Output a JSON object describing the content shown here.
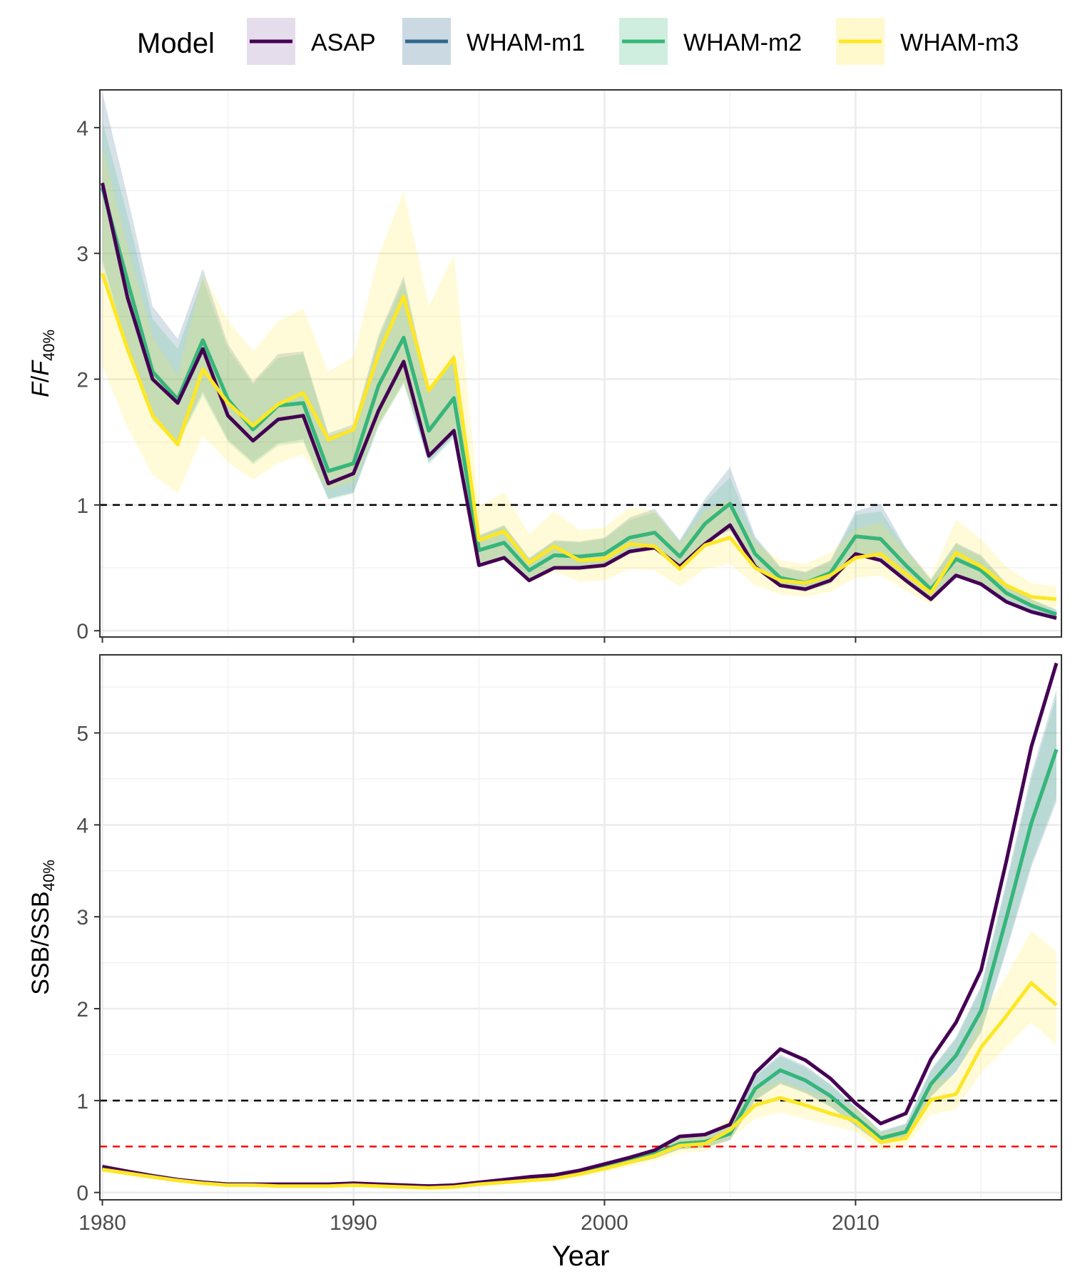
{
  "legend": {
    "title": "Model",
    "items": [
      {
        "label": "ASAP",
        "color": "#440154"
      },
      {
        "label": "WHAM-m1",
        "color": "#31688E"
      },
      {
        "label": "WHAM-m2",
        "color": "#35B779"
      },
      {
        "label": "WHAM-m3",
        "color": "#FDE725"
      }
    ]
  },
  "chart_data": [
    {
      "type": "line",
      "panel": "top",
      "ylabel": {
        "main": "F",
        "slash": "/",
        "sym": "F",
        "sub": "40%"
      },
      "xlim": [
        1979.9,
        2018.2
      ],
      "ylim": [
        -0.05,
        4.3
      ],
      "yticks": [
        0,
        1,
        2,
        3,
        4
      ],
      "xticks": [
        1980,
        1990,
        2000,
        2010
      ],
      "reference_lines": [
        {
          "y": 1,
          "color": "#000000"
        }
      ],
      "x": [
        1980,
        1981,
        1982,
        1983,
        1984,
        1985,
        1986,
        1987,
        1988,
        1989,
        1990,
        1991,
        1992,
        1993,
        1994,
        1995,
        1996,
        1997,
        1998,
        1999,
        2000,
        2001,
        2002,
        2003,
        2004,
        2005,
        2006,
        2007,
        2008,
        2009,
        2010,
        2011,
        2012,
        2013,
        2014,
        2015,
        2016,
        2017,
        2018
      ],
      "series": [
        {
          "name": "ASAP",
          "color": "#440154",
          "values": [
            3.56,
            2.65,
            2.0,
            1.81,
            2.24,
            1.71,
            1.51,
            1.68,
            1.71,
            1.17,
            1.25,
            1.75,
            2.14,
            1.39,
            1.59,
            0.52,
            0.58,
            0.4,
            0.5,
            0.5,
            0.52,
            0.63,
            0.66,
            0.51,
            0.69,
            0.84,
            0.51,
            0.36,
            0.33,
            0.4,
            0.61,
            0.56,
            0.4,
            0.25,
            0.44,
            0.37,
            0.23,
            0.15,
            0.1
          ]
        },
        {
          "name": "WHAM-m1",
          "color": "#31688E",
          "values": [
            3.52,
            2.78,
            2.06,
            1.84,
            2.31,
            1.84,
            1.6,
            1.79,
            1.81,
            1.27,
            1.33,
            1.95,
            2.33,
            1.59,
            1.85,
            0.64,
            0.7,
            0.48,
            0.6,
            0.59,
            0.61,
            0.74,
            0.78,
            0.59,
            0.85,
            1.01,
            0.61,
            0.42,
            0.38,
            0.46,
            0.75,
            0.73,
            0.52,
            0.33,
            0.57,
            0.48,
            0.3,
            0.2,
            0.13
          ],
          "lower": [
            2.95,
            2.25,
            1.7,
            1.5,
            1.9,
            1.52,
            1.34,
            1.49,
            1.52,
            1.05,
            1.1,
            1.64,
            1.98,
            1.34,
            1.55,
            0.54,
            0.59,
            0.4,
            0.5,
            0.49,
            0.51,
            0.62,
            0.65,
            0.49,
            0.7,
            0.8,
            0.5,
            0.35,
            0.32,
            0.38,
            0.6,
            0.58,
            0.42,
            0.26,
            0.46,
            0.38,
            0.24,
            0.16,
            0.1
          ],
          "upper": [
            4.28,
            3.45,
            2.58,
            2.32,
            2.88,
            2.28,
            1.98,
            2.2,
            2.22,
            1.57,
            1.64,
            2.35,
            2.82,
            1.92,
            2.2,
            0.76,
            0.84,
            0.58,
            0.72,
            0.71,
            0.74,
            0.9,
            0.97,
            0.72,
            1.05,
            1.3,
            0.75,
            0.51,
            0.47,
            0.56,
            0.95,
            1.01,
            0.66,
            0.41,
            0.7,
            0.6,
            0.38,
            0.25,
            0.17
          ]
        },
        {
          "name": "WHAM-m2",
          "color": "#35B779",
          "values": [
            3.52,
            2.78,
            2.06,
            1.84,
            2.31,
            1.84,
            1.6,
            1.79,
            1.81,
            1.27,
            1.33,
            1.95,
            2.33,
            1.59,
            1.85,
            0.64,
            0.7,
            0.48,
            0.6,
            0.59,
            0.61,
            0.74,
            0.78,
            0.59,
            0.85,
            1.01,
            0.61,
            0.42,
            0.38,
            0.46,
            0.75,
            0.73,
            0.52,
            0.33,
            0.57,
            0.48,
            0.3,
            0.2,
            0.13
          ],
          "lower": [
            2.9,
            2.22,
            1.67,
            1.48,
            1.87,
            1.5,
            1.32,
            1.47,
            1.5,
            1.04,
            1.09,
            1.62,
            1.96,
            1.32,
            1.53,
            0.53,
            0.58,
            0.4,
            0.49,
            0.48,
            0.5,
            0.61,
            0.64,
            0.48,
            0.69,
            0.8,
            0.49,
            0.34,
            0.31,
            0.37,
            0.59,
            0.58,
            0.41,
            0.26,
            0.45,
            0.38,
            0.24,
            0.16,
            0.1
          ],
          "upper": [
            4.05,
            3.3,
            2.48,
            2.24,
            2.8,
            2.24,
            1.96,
            2.17,
            2.2,
            1.55,
            1.61,
            2.32,
            2.78,
            1.9,
            2.19,
            0.75,
            0.83,
            0.57,
            0.71,
            0.7,
            0.73,
            0.88,
            0.94,
            0.71,
            1.02,
            1.22,
            0.73,
            0.5,
            0.46,
            0.55,
            0.92,
            0.95,
            0.65,
            0.4,
            0.69,
            0.59,
            0.37,
            0.25,
            0.16
          ]
        },
        {
          "name": "WHAM-m3",
          "color": "#FDE725",
          "values": [
            2.84,
            2.24,
            1.71,
            1.48,
            2.08,
            1.81,
            1.63,
            1.8,
            1.89,
            1.52,
            1.6,
            2.2,
            2.66,
            1.91,
            2.17,
            0.72,
            0.79,
            0.54,
            0.67,
            0.56,
            0.57,
            0.69,
            0.67,
            0.49,
            0.68,
            0.74,
            0.5,
            0.4,
            0.38,
            0.44,
            0.58,
            0.61,
            0.45,
            0.3,
            0.62,
            0.51,
            0.36,
            0.27,
            0.25
          ],
          "lower": [
            2.1,
            1.62,
            1.24,
            1.09,
            1.55,
            1.34,
            1.2,
            1.33,
            1.4,
            1.12,
            1.18,
            1.63,
            1.97,
            1.41,
            1.6,
            0.52,
            0.56,
            0.38,
            0.47,
            0.39,
            0.4,
            0.49,
            0.48,
            0.35,
            0.49,
            0.53,
            0.36,
            0.29,
            0.27,
            0.31,
            0.42,
            0.44,
            0.32,
            0.21,
            0.45,
            0.37,
            0.26,
            0.19,
            0.18
          ],
          "upper": [
            3.85,
            3.06,
            2.34,
            2.03,
            2.84,
            2.47,
            2.22,
            2.46,
            2.56,
            2.06,
            2.18,
            2.98,
            3.5,
            2.58,
            2.99,
            0.99,
            1.1,
            0.77,
            0.95,
            0.8,
            0.82,
            0.98,
            0.95,
            0.69,
            0.95,
            1.04,
            0.7,
            0.56,
            0.53,
            0.62,
            0.81,
            0.86,
            0.64,
            0.43,
            0.88,
            0.73,
            0.51,
            0.38,
            0.35
          ]
        }
      ]
    },
    {
      "type": "line",
      "panel": "bottom",
      "xlabel": "Year",
      "ylabel": {
        "main": "SSB",
        "slash": "/",
        "sym": "SSB",
        "sub": "40%"
      },
      "xlim": [
        1979.9,
        2018.2
      ],
      "ylim": [
        -0.08,
        5.85
      ],
      "yticks": [
        0,
        1,
        2,
        3,
        4,
        5
      ],
      "xticks": [
        1980,
        1990,
        2000,
        2010
      ],
      "reference_lines": [
        {
          "y": 1,
          "color": "#000000"
        },
        {
          "y": 0.5,
          "color": "#FF0000"
        }
      ],
      "x": [
        1980,
        1981,
        1982,
        1983,
        1984,
        1985,
        1986,
        1987,
        1988,
        1989,
        1990,
        1991,
        1992,
        1993,
        1994,
        1995,
        1996,
        1997,
        1998,
        1999,
        2000,
        2001,
        2002,
        2003,
        2004,
        2005,
        2006,
        2007,
        2008,
        2009,
        2010,
        2011,
        2012,
        2013,
        2014,
        2015,
        2016,
        2017,
        2018
      ],
      "series": [
        {
          "name": "ASAP",
          "color": "#440154",
          "values": [
            0.28,
            0.23,
            0.18,
            0.14,
            0.11,
            0.09,
            0.09,
            0.09,
            0.09,
            0.09,
            0.1,
            0.09,
            0.08,
            0.07,
            0.08,
            0.11,
            0.14,
            0.17,
            0.19,
            0.24,
            0.31,
            0.38,
            0.46,
            0.61,
            0.63,
            0.74,
            1.3,
            1.56,
            1.44,
            1.24,
            0.97,
            0.75,
            0.86,
            1.45,
            1.85,
            2.42,
            3.6,
            4.85,
            5.76
          ]
        },
        {
          "name": "WHAM-m1",
          "color": "#31688E",
          "values": [
            0.27,
            0.22,
            0.18,
            0.14,
            0.11,
            0.09,
            0.09,
            0.08,
            0.08,
            0.08,
            0.09,
            0.08,
            0.07,
            0.07,
            0.07,
            0.1,
            0.12,
            0.15,
            0.17,
            0.22,
            0.29,
            0.35,
            0.42,
            0.53,
            0.55,
            0.64,
            1.13,
            1.33,
            1.22,
            1.05,
            0.82,
            0.59,
            0.66,
            1.18,
            1.49,
            1.98,
            2.98,
            4.02,
            4.82
          ],
          "lower": [
            0.24,
            0.19,
            0.15,
            0.12,
            0.09,
            0.08,
            0.07,
            0.07,
            0.07,
            0.07,
            0.08,
            0.07,
            0.06,
            0.06,
            0.06,
            0.08,
            0.1,
            0.13,
            0.15,
            0.19,
            0.25,
            0.31,
            0.37,
            0.47,
            0.49,
            0.57,
            1.0,
            1.18,
            1.08,
            0.93,
            0.72,
            0.52,
            0.58,
            1.04,
            1.31,
            1.74,
            2.62,
            3.54,
            4.25
          ],
          "upper": [
            0.31,
            0.25,
            0.21,
            0.16,
            0.13,
            0.1,
            0.1,
            0.09,
            0.09,
            0.09,
            0.1,
            0.09,
            0.08,
            0.08,
            0.08,
            0.12,
            0.14,
            0.17,
            0.19,
            0.25,
            0.33,
            0.4,
            0.48,
            0.6,
            0.62,
            0.73,
            1.28,
            1.5,
            1.38,
            1.18,
            0.93,
            0.67,
            0.75,
            1.34,
            1.69,
            2.25,
            3.38,
            4.56,
            5.47
          ]
        },
        {
          "name": "WHAM-m2",
          "color": "#35B779",
          "values": [
            0.27,
            0.22,
            0.18,
            0.14,
            0.11,
            0.09,
            0.09,
            0.08,
            0.08,
            0.08,
            0.09,
            0.08,
            0.07,
            0.07,
            0.07,
            0.1,
            0.12,
            0.15,
            0.17,
            0.22,
            0.29,
            0.35,
            0.42,
            0.53,
            0.55,
            0.64,
            1.13,
            1.33,
            1.22,
            1.05,
            0.82,
            0.59,
            0.66,
            1.18,
            1.49,
            1.98,
            2.98,
            4.02,
            4.82
          ],
          "lower": [
            0.24,
            0.19,
            0.15,
            0.12,
            0.09,
            0.08,
            0.07,
            0.07,
            0.07,
            0.07,
            0.08,
            0.07,
            0.06,
            0.06,
            0.06,
            0.08,
            0.1,
            0.13,
            0.15,
            0.19,
            0.25,
            0.31,
            0.37,
            0.47,
            0.49,
            0.57,
            1.01,
            1.19,
            1.09,
            0.94,
            0.73,
            0.53,
            0.59,
            1.05,
            1.32,
            1.76,
            2.65,
            3.58,
            4.3
          ],
          "upper": [
            0.3,
            0.25,
            0.2,
            0.16,
            0.12,
            0.1,
            0.1,
            0.09,
            0.09,
            0.09,
            0.1,
            0.09,
            0.08,
            0.08,
            0.08,
            0.11,
            0.14,
            0.17,
            0.19,
            0.25,
            0.32,
            0.39,
            0.47,
            0.59,
            0.61,
            0.72,
            1.26,
            1.48,
            1.36,
            1.17,
            0.92,
            0.66,
            0.74,
            1.32,
            1.67,
            2.22,
            3.34,
            4.5,
            5.4
          ]
        },
        {
          "name": "WHAM-m3",
          "color": "#FDE725",
          "values": [
            0.25,
            0.21,
            0.17,
            0.13,
            0.1,
            0.08,
            0.08,
            0.07,
            0.07,
            0.07,
            0.08,
            0.07,
            0.06,
            0.05,
            0.06,
            0.09,
            0.11,
            0.13,
            0.15,
            0.2,
            0.26,
            0.33,
            0.4,
            0.51,
            0.53,
            0.68,
            0.95,
            1.03,
            0.95,
            0.86,
            0.78,
            0.55,
            0.59,
            1.01,
            1.07,
            1.58,
            1.92,
            2.28,
            2.04
          ],
          "lower": [
            0.21,
            0.18,
            0.14,
            0.11,
            0.08,
            0.07,
            0.07,
            0.06,
            0.06,
            0.06,
            0.07,
            0.06,
            0.05,
            0.04,
            0.05,
            0.08,
            0.09,
            0.11,
            0.13,
            0.17,
            0.22,
            0.28,
            0.34,
            0.43,
            0.45,
            0.58,
            0.8,
            0.87,
            0.8,
            0.73,
            0.66,
            0.46,
            0.5,
            0.85,
            0.9,
            1.3,
            1.58,
            1.85,
            1.6
          ],
          "upper": [
            0.3,
            0.25,
            0.2,
            0.16,
            0.12,
            0.1,
            0.1,
            0.09,
            0.09,
            0.09,
            0.1,
            0.09,
            0.08,
            0.07,
            0.08,
            0.11,
            0.13,
            0.16,
            0.18,
            0.24,
            0.31,
            0.39,
            0.47,
            0.61,
            0.63,
            0.81,
            1.13,
            1.22,
            1.12,
            1.02,
            0.92,
            0.65,
            0.7,
            1.2,
            1.28,
            1.92,
            2.35,
            2.85,
            2.62
          ]
        }
      ]
    }
  ]
}
